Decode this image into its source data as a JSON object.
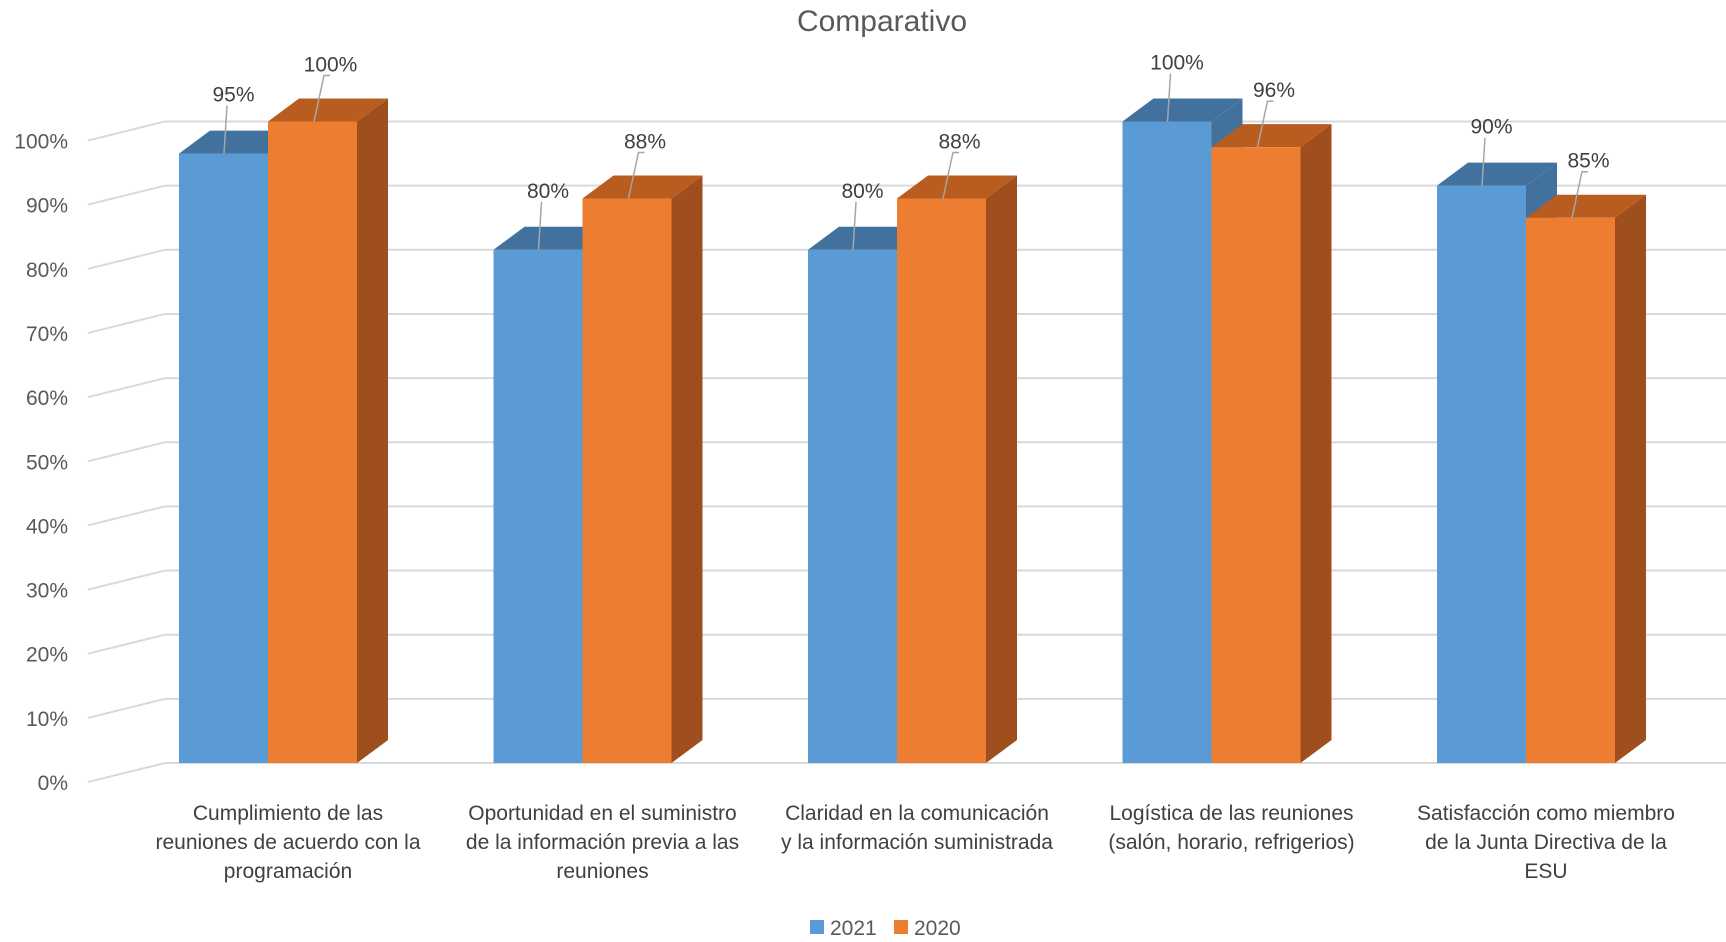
{
  "chart_data": {
    "type": "bar",
    "title": "Comparativo",
    "xlabel": "",
    "ylabel": "",
    "ylim": [
      0,
      100
    ],
    "yticks": [
      "0%",
      "10%",
      "20%",
      "30%",
      "40%",
      "50%",
      "60%",
      "70%",
      "80%",
      "90%",
      "100%"
    ],
    "categories": [
      [
        "Cumplimiento de las",
        "reuniones de acuerdo con la",
        "programación"
      ],
      [
        "Oportunidad en el suministro",
        "de la información previa a las",
        "reuniones"
      ],
      [
        "Claridad en la comunicación",
        "y la información suministrada"
      ],
      [
        "Logística de las reuniones",
        "(salón, horario, refrigerios)"
      ],
      [
        "Satisfacción como miembro",
        "de la Junta Directiva de la",
        "ESU"
      ]
    ],
    "series": [
      {
        "name": "2021",
        "values": [
          95,
          80,
          80,
          100,
          90
        ],
        "labels": [
          "95%",
          "80%",
          "80%",
          "100%",
          "90%"
        ],
        "color": "#5B9BD5",
        "top_color": "#41719C",
        "side_color": "#41719C"
      },
      {
        "name": "2020",
        "values": [
          100,
          88,
          88,
          96,
          85
        ],
        "labels": [
          "100%",
          "88%",
          "88%",
          "96%",
          "85%"
        ],
        "color": "#ED7D31",
        "top_color": "#B85C1F",
        "side_color": "#9E4F1D"
      }
    ],
    "grid": true,
    "legend_position": "bottom",
    "style": "3d-clustered-column"
  }
}
